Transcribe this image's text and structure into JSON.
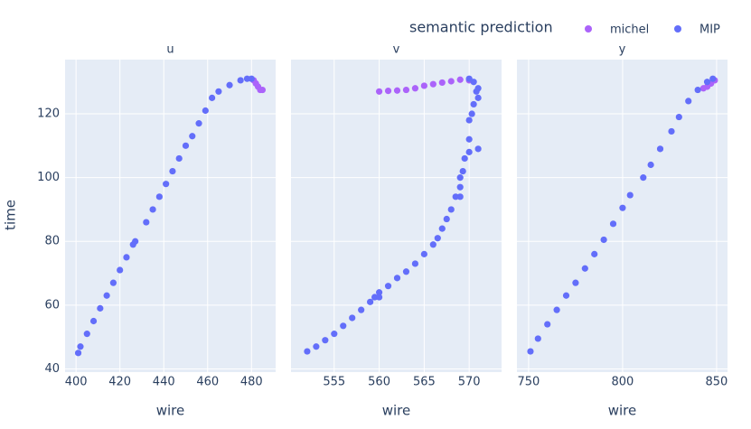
{
  "chart_data": [
    {
      "type": "scatter",
      "title": "u",
      "x_label": "wire",
      "y_label": "time",
      "legend_title": "semantic prediction",
      "xlim": [
        395,
        491
      ],
      "xticks": [
        400,
        420,
        440,
        460,
        480
      ],
      "ylim": [
        39,
        137
      ],
      "yticks": [
        40,
        60,
        80,
        100,
        120
      ],
      "grid": true,
      "series": [
        {
          "name": "michel",
          "color": "#ab63fa",
          "x": [
            481,
            482,
            483,
            484,
            485
          ],
          "values": [
            130.5,
            129.5,
            128.5,
            127.5,
            127.5
          ]
        },
        {
          "name": "MIP",
          "color": "#636efa",
          "x": [
            401,
            402,
            405,
            408,
            411,
            414,
            417,
            420,
            423,
            426,
            427,
            432,
            435,
            438,
            441,
            444,
            447,
            450,
            453,
            456,
            459,
            462,
            465,
            470,
            475,
            478,
            480
          ],
          "values": [
            45,
            47,
            51,
            55,
            59,
            63,
            67,
            71,
            75,
            79,
            80,
            86,
            90,
            94,
            98,
            102,
            106,
            110,
            113,
            117,
            121,
            125,
            127,
            129,
            130.5,
            131,
            131
          ]
        }
      ]
    },
    {
      "type": "scatter",
      "title": "v",
      "x_label": "wire",
      "xlim": [
        550.2,
        573.6
      ],
      "xticks": [
        555,
        560,
        565,
        570
      ],
      "ylim": [
        39,
        137
      ],
      "yticks": [
        40,
        60,
        80,
        100,
        120
      ],
      "grid": true,
      "series": [
        {
          "name": "michel",
          "color": "#ab63fa",
          "x": [
            560,
            561,
            562,
            563,
            564,
            565,
            566,
            567,
            568,
            569,
            570
          ],
          "values": [
            127,
            127.2,
            127.3,
            127.5,
            128,
            128.8,
            129.3,
            129.8,
            130.2,
            130.7,
            130.5
          ]
        },
        {
          "name": "MIP",
          "color": "#636efa",
          "x": [
            552,
            553,
            554,
            555,
            556,
            557,
            558,
            559,
            559.5,
            560,
            560,
            561,
            562,
            563,
            564,
            565,
            566,
            566.5,
            567,
            567.5,
            568,
            568.5,
            569,
            569,
            569.3,
            569.5,
            570,
            570,
            570,
            570.3,
            570.5,
            571,
            570.8,
            571,
            570.5,
            570,
            571,
            569
          ],
          "values": [
            45.5,
            47,
            49,
            51,
            53.5,
            56,
            58.5,
            61,
            62.5,
            62.5,
            64,
            66,
            68.5,
            70.5,
            73,
            76,
            79,
            81,
            84,
            87,
            90,
            94,
            97,
            100,
            102,
            106,
            108,
            112,
            118,
            120,
            123,
            125,
            127,
            128,
            130,
            131,
            109,
            94
          ]
        }
      ]
    },
    {
      "type": "scatter",
      "title": "y",
      "x_label": "wire",
      "xlim": [
        743.8,
        855.8
      ],
      "xticks": [
        750,
        800,
        850
      ],
      "ylim": [
        39,
        137
      ],
      "yticks": [
        40,
        60,
        80,
        100,
        120
      ],
      "grid": true,
      "series": [
        {
          "name": "michel",
          "color": "#ab63fa",
          "x": [
            843,
            845,
            847,
            849
          ],
          "values": [
            128,
            128.5,
            129.5,
            130.5
          ]
        },
        {
          "name": "MIP",
          "color": "#636efa",
          "x": [
            751,
            755,
            760,
            765,
            770,
            775,
            780,
            785,
            790,
            795,
            800,
            804,
            811,
            815,
            820,
            826,
            830,
            835,
            840,
            845,
            848
          ],
          "values": [
            45.5,
            49.5,
            54,
            58.5,
            63,
            67,
            71.5,
            76,
            80.5,
            85.5,
            90.5,
            94.5,
            100,
            104,
            109,
            114.5,
            119,
            124,
            127.5,
            130,
            131
          ]
        }
      ]
    }
  ]
}
